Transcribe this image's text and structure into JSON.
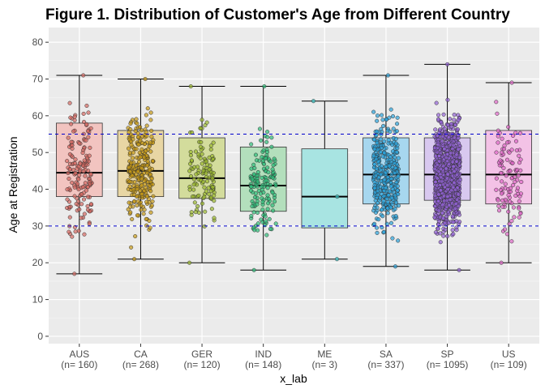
{
  "chart_data": {
    "type": "boxplot",
    "title": "Figure 1. Distribution of Customer's Age from Different Country",
    "xlabel": "x_lab",
    "ylabel": "Age at Registration",
    "ylim": [
      -2,
      84
    ],
    "yticks": [
      0,
      10,
      20,
      30,
      40,
      50,
      60,
      70,
      80
    ],
    "grid": true,
    "background": "#ebebeb",
    "reference_lines": [
      {
        "y": 30,
        "color": "#0000cc",
        "style": "dashed"
      },
      {
        "y": 55,
        "color": "#0000cc",
        "style": "dashed"
      }
    ],
    "groups": [
      {
        "name": "AUS",
        "n_label": "(n= 160)",
        "n": 160,
        "min": 17,
        "q1": 38,
        "median": 44.5,
        "q3": 58,
        "max": 71,
        "fill": "#f2c4c0",
        "point": "#d66a62"
      },
      {
        "name": "CA",
        "n_label": "(n= 268)",
        "n": 268,
        "min": 21,
        "q1": 38,
        "median": 45,
        "q3": 56,
        "max": 70,
        "fill": "#e8d6a4",
        "point": "#c79a16"
      },
      {
        "name": "GER",
        "n_label": "(n= 120)",
        "n": 120,
        "min": 20,
        "q1": 37.5,
        "median": 43,
        "q3": 54,
        "max": 68,
        "fill": "#d3dc9c",
        "point": "#9ab82c"
      },
      {
        "name": "IND",
        "n_label": "(n= 148)",
        "n": 148,
        "min": 18,
        "q1": 34,
        "median": 41,
        "q3": 51.5,
        "max": 68,
        "fill": "#b3dfbc",
        "point": "#2ebf7a"
      },
      {
        "name": "ME",
        "n_label": "(n= 3)",
        "n": 3,
        "min": 21,
        "q1": 29.5,
        "median": 38,
        "q3": 51,
        "max": 64,
        "fill": "#a8e4e2",
        "point": "#3bc6c6"
      },
      {
        "name": "SA",
        "n_label": "(n= 337)",
        "n": 337,
        "min": 19,
        "q1": 36,
        "median": 44,
        "q3": 54,
        "max": 71,
        "fill": "#a7d7ef",
        "point": "#2aa3dc"
      },
      {
        "name": "SP",
        "n_label": "(n= 1095)",
        "n": 1095,
        "min": 18,
        "q1": 37,
        "median": 44,
        "q3": 54,
        "max": 74,
        "fill": "#d8c8ef",
        "point": "#9363d6"
      },
      {
        "name": "US",
        "n_label": "(n= 109)",
        "n": 109,
        "min": 20,
        "q1": 36,
        "median": 44,
        "q3": 56,
        "max": 69,
        "fill": "#f3c2e6",
        "point": "#e066c8"
      }
    ]
  }
}
